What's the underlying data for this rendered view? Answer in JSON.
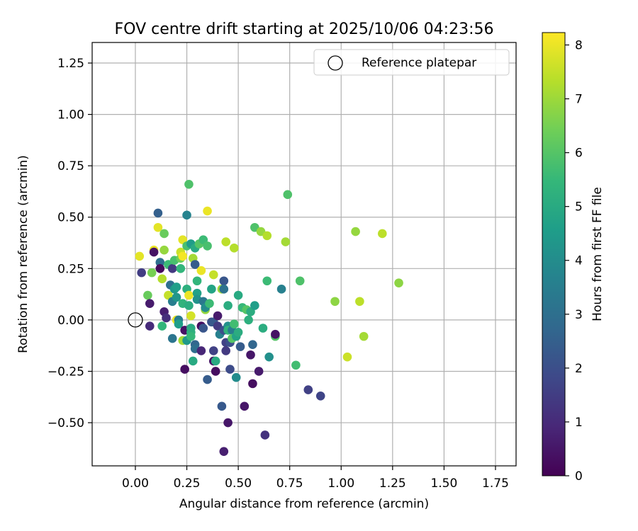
{
  "chart_data": {
    "type": "scatter",
    "title": "FOV centre drift starting at 2025/10/06 04:23:56",
    "xlabel": "Angular distance from reference (arcmin)",
    "ylabel": "Rotation from reference (arcmin)",
    "xlim": [
      -0.21,
      1.85
    ],
    "ylim": [
      -0.71,
      1.35
    ],
    "grid": true,
    "xticks": [
      0.0,
      0.25,
      0.5,
      0.75,
      1.0,
      1.25,
      1.5,
      1.75
    ],
    "xtick_labels": [
      "0.00",
      "0.25",
      "0.50",
      "0.75",
      "1.00",
      "1.25",
      "1.50",
      "1.75"
    ],
    "yticks": [
      -0.5,
      -0.25,
      0.0,
      0.25,
      0.5,
      0.75,
      1.0,
      1.25
    ],
    "ytick_labels": [
      "−0.50",
      "−0.25",
      "0.00",
      "0.25",
      "0.50",
      "0.75",
      "1.00",
      "1.25"
    ],
    "legend": {
      "position": "upper-right",
      "label": "Reference platepar"
    },
    "reference_point": {
      "x": 0.0,
      "y": 0.0
    },
    "colorbar": {
      "label": "Hours from first FF file",
      "range": [
        0,
        8.23
      ],
      "ticks": [
        0,
        1,
        2,
        3,
        4,
        5,
        6,
        7,
        8
      ],
      "tick_labels": [
        "0",
        "1",
        "2",
        "3",
        "4",
        "5",
        "6",
        "7",
        "8"
      ],
      "colormap": [
        "#440154",
        "#482878",
        "#3e4989",
        "#31688e",
        "#26828e",
        "#1f9e89",
        "#35b779",
        "#6ece58",
        "#b5de2b",
        "#fde725"
      ]
    },
    "points": [
      {
        "x": 0.02,
        "y": 0.31,
        "t": 7.9
      },
      {
        "x": 0.03,
        "y": 0.23,
        "t": 1.5
      },
      {
        "x": 0.06,
        "y": 0.12,
        "t": 6.3
      },
      {
        "x": 0.07,
        "y": 0.08,
        "t": 0.6
      },
      {
        "x": 0.07,
        "y": -0.03,
        "t": 1.0
      },
      {
        "x": 0.08,
        "y": 0.23,
        "t": 6.5
      },
      {
        "x": 0.09,
        "y": 0.34,
        "t": 8.0
      },
      {
        "x": 0.09,
        "y": 0.33,
        "t": 0.4
      },
      {
        "x": 0.11,
        "y": 0.52,
        "t": 2.5
      },
      {
        "x": 0.11,
        "y": 0.45,
        "t": 7.9
      },
      {
        "x": 0.12,
        "y": 0.28,
        "t": 3.0
      },
      {
        "x": 0.12,
        "y": 0.25,
        "t": 0.2
      },
      {
        "x": 0.13,
        "y": 0.2,
        "t": 7.3
      },
      {
        "x": 0.13,
        "y": -0.03,
        "t": 5.4
      },
      {
        "x": 0.14,
        "y": 0.42,
        "t": 6.3
      },
      {
        "x": 0.14,
        "y": 0.34,
        "t": 6.9
      },
      {
        "x": 0.14,
        "y": 0.04,
        "t": 0.7
      },
      {
        "x": 0.15,
        "y": 0.01,
        "t": 1.1
      },
      {
        "x": 0.16,
        "y": 0.12,
        "t": 7.5
      },
      {
        "x": 0.16,
        "y": 0.27,
        "t": 5.6
      },
      {
        "x": 0.17,
        "y": 0.17,
        "t": 3.0
      },
      {
        "x": 0.18,
        "y": 0.25,
        "t": 1.4
      },
      {
        "x": 0.18,
        "y": 0.09,
        "t": 3.5
      },
      {
        "x": 0.18,
        "y": -0.09,
        "t": 3.2
      },
      {
        "x": 0.19,
        "y": 0.29,
        "t": 5.8
      },
      {
        "x": 0.19,
        "y": 0.15,
        "t": 4.4
      },
      {
        "x": 0.2,
        "y": 0.11,
        "t": 4.3
      },
      {
        "x": 0.2,
        "y": 0.16,
        "t": 4.6
      },
      {
        "x": 0.2,
        "y": 0.0,
        "t": 8.0
      },
      {
        "x": 0.21,
        "y": 0.0,
        "t": 3.4
      },
      {
        "x": 0.21,
        "y": -0.02,
        "t": 4.6
      },
      {
        "x": 0.22,
        "y": 0.3,
        "t": 6.4
      },
      {
        "x": 0.22,
        "y": 0.25,
        "t": 5.4
      },
      {
        "x": 0.22,
        "y": 0.33,
        "t": 7.6
      },
      {
        "x": 0.23,
        "y": 0.39,
        "t": 7.9
      },
      {
        "x": 0.23,
        "y": 0.31,
        "t": 8.1
      },
      {
        "x": 0.23,
        "y": 0.08,
        "t": 5.3
      },
      {
        "x": 0.23,
        "y": -0.1,
        "t": 7.1
      },
      {
        "x": 0.24,
        "y": -0.05,
        "t": 0.4
      },
      {
        "x": 0.24,
        "y": -0.24,
        "t": 0.3
      },
      {
        "x": 0.25,
        "y": 0.51,
        "t": 3.7
      },
      {
        "x": 0.25,
        "y": 0.36,
        "t": 5.8
      },
      {
        "x": 0.25,
        "y": 0.15,
        "t": 5.2
      },
      {
        "x": 0.25,
        "y": -0.1,
        "t": 4.4
      },
      {
        "x": 0.26,
        "y": 0.66,
        "t": 5.9
      },
      {
        "x": 0.26,
        "y": 0.12,
        "t": 8.0
      },
      {
        "x": 0.26,
        "y": 0.07,
        "t": 5.1
      },
      {
        "x": 0.27,
        "y": 0.02,
        "t": 7.7
      },
      {
        "x": 0.27,
        "y": -0.04,
        "t": 5.0
      },
      {
        "x": 0.27,
        "y": -0.06,
        "t": 5.2
      },
      {
        "x": 0.27,
        "y": -0.08,
        "t": 5.5
      },
      {
        "x": 0.27,
        "y": 0.37,
        "t": 4.5
      },
      {
        "x": 0.28,
        "y": 0.3,
        "t": 7.1
      },
      {
        "x": 0.28,
        "y": -0.2,
        "t": 5.0
      },
      {
        "x": 0.29,
        "y": 0.35,
        "t": 5.0
      },
      {
        "x": 0.29,
        "y": 0.27,
        "t": 2.4
      },
      {
        "x": 0.29,
        "y": -0.12,
        "t": 2.7
      },
      {
        "x": 0.29,
        "y": -0.14,
        "t": 3.0
      },
      {
        "x": 0.3,
        "y": 0.19,
        "t": 5.4
      },
      {
        "x": 0.3,
        "y": 0.13,
        "t": 4.7
      },
      {
        "x": 0.3,
        "y": 0.1,
        "t": 4.2
      },
      {
        "x": 0.31,
        "y": 0.37,
        "t": 6.0
      },
      {
        "x": 0.32,
        "y": 0.24,
        "t": 8.0
      },
      {
        "x": 0.32,
        "y": -0.03,
        "t": 0.3
      },
      {
        "x": 0.32,
        "y": -0.15,
        "t": 0.9
      },
      {
        "x": 0.33,
        "y": 0.39,
        "t": 5.6
      },
      {
        "x": 0.33,
        "y": 0.09,
        "t": 3.3
      },
      {
        "x": 0.33,
        "y": -0.04,
        "t": 2.2
      },
      {
        "x": 0.34,
        "y": 0.05,
        "t": 6.9
      },
      {
        "x": 0.34,
        "y": 0.06,
        "t": 4.0
      },
      {
        "x": 0.35,
        "y": 0.53,
        "t": 8.0
      },
      {
        "x": 0.35,
        "y": 0.36,
        "t": 5.8
      },
      {
        "x": 0.35,
        "y": -0.29,
        "t": 2.4
      },
      {
        "x": 0.36,
        "y": 0.08,
        "t": 5.6
      },
      {
        "x": 0.37,
        "y": 0.15,
        "t": 4.8
      },
      {
        "x": 0.37,
        "y": -0.01,
        "t": 2.1
      },
      {
        "x": 0.38,
        "y": 0.22,
        "t": 7.5
      },
      {
        "x": 0.38,
        "y": -0.01,
        "t": 2.3
      },
      {
        "x": 0.38,
        "y": -0.15,
        "t": 1.6
      },
      {
        "x": 0.38,
        "y": -0.2,
        "t": 0.4
      },
      {
        "x": 0.39,
        "y": -0.2,
        "t": 5.0
      },
      {
        "x": 0.39,
        "y": -0.25,
        "t": 0.3
      },
      {
        "x": 0.4,
        "y": 0.02,
        "t": 0.6
      },
      {
        "x": 0.4,
        "y": -0.03,
        "t": 1.4
      },
      {
        "x": 0.41,
        "y": -0.07,
        "t": 3.6
      },
      {
        "x": 0.42,
        "y": -0.42,
        "t": 2.3
      },
      {
        "x": 0.42,
        "y": 0.15,
        "t": 7.0
      },
      {
        "x": 0.43,
        "y": 0.19,
        "t": 2.2
      },
      {
        "x": 0.43,
        "y": 0.15,
        "t": 3.1
      },
      {
        "x": 0.43,
        "y": -0.05,
        "t": 2.0
      },
      {
        "x": 0.43,
        "y": -0.64,
        "t": 0.7
      },
      {
        "x": 0.44,
        "y": 0.38,
        "t": 7.4
      },
      {
        "x": 0.44,
        "y": -0.11,
        "t": 1.6
      },
      {
        "x": 0.44,
        "y": -0.15,
        "t": 1.4
      },
      {
        "x": 0.45,
        "y": -0.5,
        "t": 0.5
      },
      {
        "x": 0.45,
        "y": -0.03,
        "t": 4.1
      },
      {
        "x": 0.45,
        "y": -0.05,
        "t": 5.3
      },
      {
        "x": 0.45,
        "y": 0.07,
        "t": 5.1
      },
      {
        "x": 0.46,
        "y": -0.24,
        "t": 1.9
      },
      {
        "x": 0.46,
        "y": -0.11,
        "t": 2.0
      },
      {
        "x": 0.47,
        "y": -0.05,
        "t": 3.5
      },
      {
        "x": 0.47,
        "y": -0.09,
        "t": 6.0
      },
      {
        "x": 0.48,
        "y": -0.02,
        "t": 5.7
      },
      {
        "x": 0.48,
        "y": 0.35,
        "t": 7.3
      },
      {
        "x": 0.49,
        "y": -0.28,
        "t": 4.0
      },
      {
        "x": 0.49,
        "y": -0.08,
        "t": 4.8
      },
      {
        "x": 0.5,
        "y": 0.12,
        "t": 5.0
      },
      {
        "x": 0.5,
        "y": -0.06,
        "t": 5.1
      },
      {
        "x": 0.51,
        "y": -0.13,
        "t": 2.4
      },
      {
        "x": 0.52,
        "y": 0.06,
        "t": 5.5
      },
      {
        "x": 0.53,
        "y": -0.42,
        "t": 0.5
      },
      {
        "x": 0.54,
        "y": 0.05,
        "t": 6.0
      },
      {
        "x": 0.55,
        "y": 0.0,
        "t": 5.2
      },
      {
        "x": 0.56,
        "y": -0.17,
        "t": 0.5
      },
      {
        "x": 0.56,
        "y": 0.04,
        "t": 5.1
      },
      {
        "x": 0.57,
        "y": -0.31,
        "t": 0.3
      },
      {
        "x": 0.57,
        "y": -0.12,
        "t": 2.7
      },
      {
        "x": 0.58,
        "y": 0.45,
        "t": 5.9
      },
      {
        "x": 0.58,
        "y": 0.07,
        "t": 4.6
      },
      {
        "x": 0.6,
        "y": -0.25,
        "t": 0.6
      },
      {
        "x": 0.61,
        "y": 0.43,
        "t": 6.9
      },
      {
        "x": 0.62,
        "y": -0.04,
        "t": 5.1
      },
      {
        "x": 0.63,
        "y": -0.56,
        "t": 1.2
      },
      {
        "x": 0.64,
        "y": 0.41,
        "t": 7.3
      },
      {
        "x": 0.64,
        "y": 0.19,
        "t": 5.6
      },
      {
        "x": 0.65,
        "y": -0.18,
        "t": 4.1
      },
      {
        "x": 0.68,
        "y": -0.08,
        "t": 6.0
      },
      {
        "x": 0.68,
        "y": -0.07,
        "t": 0.4
      },
      {
        "x": 0.71,
        "y": 0.15,
        "t": 3.6
      },
      {
        "x": 0.73,
        "y": 0.38,
        "t": 7.1
      },
      {
        "x": 0.74,
        "y": 0.61,
        "t": 5.9
      },
      {
        "x": 0.78,
        "y": -0.22,
        "t": 5.7
      },
      {
        "x": 0.8,
        "y": 0.19,
        "t": 5.9
      },
      {
        "x": 0.84,
        "y": -0.34,
        "t": 1.6
      },
      {
        "x": 0.9,
        "y": -0.37,
        "t": 1.7
      },
      {
        "x": 0.97,
        "y": 0.09,
        "t": 6.8
      },
      {
        "x": 1.03,
        "y": -0.18,
        "t": 7.6
      },
      {
        "x": 1.07,
        "y": 0.43,
        "t": 6.9
      },
      {
        "x": 1.09,
        "y": 0.09,
        "t": 7.4
      },
      {
        "x": 1.11,
        "y": -0.08,
        "t": 7.1
      },
      {
        "x": 1.2,
        "y": 0.42,
        "t": 7.4
      },
      {
        "x": 1.28,
        "y": 0.18,
        "t": 6.8
      }
    ]
  }
}
